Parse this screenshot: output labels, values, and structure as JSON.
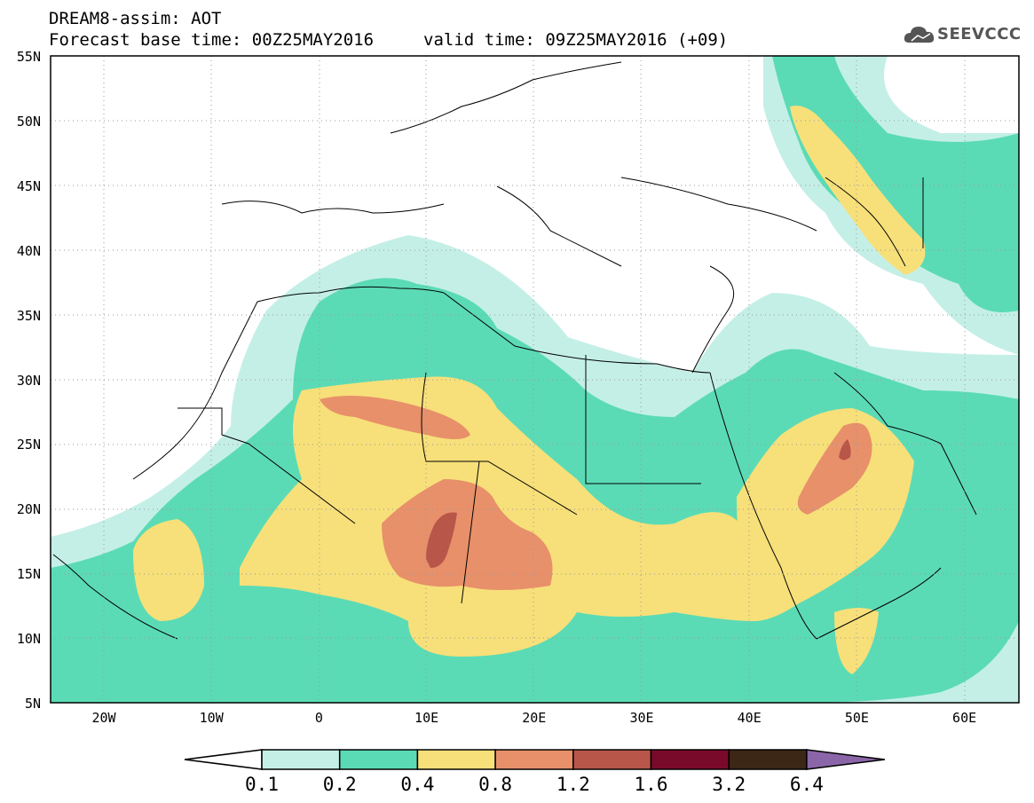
{
  "title": {
    "line1": "DREAM8-assim: AOT",
    "base": "Forecast base time: 00Z25MAY2016",
    "valid": "valid time: 09Z25MAY2016 (+09)"
  },
  "logo": {
    "text": "SEEVCCC",
    "icon": "cloud-logo-icon"
  },
  "axes": {
    "lat_labels": [
      "55N",
      "50N",
      "45N",
      "40N",
      "35N",
      "30N",
      "25N",
      "20N",
      "15N",
      "10N",
      "5N"
    ],
    "lon_labels": [
      "20W",
      "10W",
      "0",
      "10E",
      "20E",
      "30E",
      "40E",
      "50E",
      "60E"
    ],
    "lon_range": [
      -25,
      65
    ],
    "lat_range": [
      5,
      55
    ]
  },
  "colorbar": {
    "labels": [
      "0.1",
      "0.2",
      "0.4",
      "0.8",
      "1.2",
      "1.6",
      "3.2",
      "6.4"
    ],
    "colors": [
      "#ffffff",
      "#c4efe7",
      "#5bdbb5",
      "#f7e07a",
      "#e8906a",
      "#b8564a",
      "#7a0a2a",
      "#3c2616",
      "#8a66a8"
    ]
  }
}
